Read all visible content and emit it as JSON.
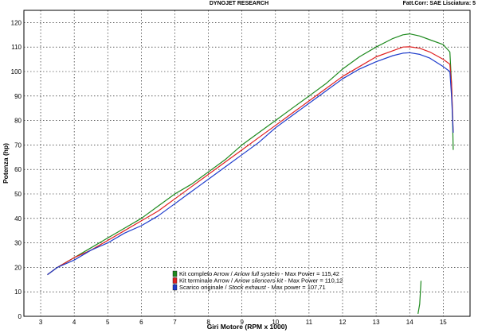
{
  "header": {
    "title": "DYNOJET RESEARCH",
    "correction": "Fatt.Corr: SAE  Lisciatura: 5"
  },
  "chart_data": {
    "type": "line",
    "xlabel": "Giri Motore (RPM x 1000)",
    "ylabel": "Potenza (hp)",
    "xlim": [
      2.5,
      15.8
    ],
    "ylim": [
      0,
      125
    ],
    "xticks": [
      3,
      4,
      5,
      6,
      7,
      8,
      9,
      10,
      11,
      12,
      13,
      14,
      15
    ],
    "yticks": [
      0,
      10,
      20,
      30,
      40,
      50,
      60,
      70,
      80,
      90,
      100,
      110,
      120
    ],
    "grid": true,
    "legend_position": "bottom-center",
    "series": [
      {
        "name": "Kit completo Arrow / Arrow full system - Max Power = 115,42",
        "legend_plain": "Kit completo Arrow / ",
        "legend_italic": "Arrow full system",
        "legend_tail": " - Max Power = 115,42",
        "color": "#1e8a1e",
        "x": [
          3.2,
          3.5,
          4.0,
          4.5,
          5.0,
          5.5,
          6.0,
          6.5,
          7.0,
          7.5,
          8.0,
          8.5,
          9.0,
          9.5,
          10.0,
          10.5,
          11.0,
          11.5,
          12.0,
          12.5,
          13.0,
          13.5,
          13.8,
          14.0,
          14.3,
          14.6,
          15.0,
          15.2,
          15.25,
          15.28,
          15.3
        ],
        "y": [
          17,
          20,
          24,
          28,
          32,
          36,
          40,
          45,
          50,
          54,
          59,
          64,
          70,
          75,
          80,
          85,
          90,
          95,
          101,
          106,
          110,
          113.5,
          115,
          115.4,
          114.5,
          113,
          111,
          108,
          95,
          80,
          68
        ]
      },
      {
        "name": "Kit terminale Arrow / Arrow silencers kit - Max Power = 110,12",
        "legend_plain": "Kit terminale Arrow / ",
        "legend_italic": "Arrow silencers kit",
        "legend_tail": " - Max Power = 110,12",
        "color": "#e02020",
        "x": [
          3.2,
          3.5,
          4.0,
          4.5,
          5.0,
          5.5,
          6.0,
          6.5,
          7.0,
          7.5,
          8.0,
          8.5,
          9.0,
          9.5,
          10.0,
          10.5,
          11.0,
          11.5,
          12.0,
          12.5,
          13.0,
          13.5,
          13.8,
          14.0,
          14.3,
          14.6,
          15.0,
          15.2,
          15.25,
          15.3
        ],
        "y": [
          17,
          20,
          24,
          27,
          31,
          35,
          39,
          43,
          48,
          53,
          58,
          63,
          68,
          73,
          78,
          83,
          88,
          93,
          98,
          102,
          106,
          108.5,
          110,
          110.1,
          109.5,
          108,
          105,
          103,
          95,
          75
        ]
      },
      {
        "name": "Scarico originale / Stock exhaust - Max power = 107,71",
        "legend_plain": "Scarico originale / ",
        "legend_italic": "Stock exhaust",
        "legend_tail": " - Max power = 107,71",
        "color": "#1e3ccc",
        "x": [
          3.2,
          3.5,
          4.0,
          4.5,
          5.0,
          5.5,
          6.0,
          6.5,
          7.0,
          7.5,
          8.0,
          8.5,
          9.0,
          9.5,
          10.0,
          10.5,
          11.0,
          11.5,
          12.0,
          12.5,
          13.0,
          13.5,
          13.8,
          14.0,
          14.3,
          14.6,
          15.0,
          15.2,
          15.25,
          15.3
        ],
        "y": [
          17,
          20,
          23,
          27,
          30,
          34,
          37,
          41,
          46,
          51,
          56,
          61,
          66,
          71,
          77,
          82,
          87,
          92,
          97,
          101,
          104,
          106.5,
          107.5,
          107.7,
          107,
          105.5,
          102,
          100,
          90,
          75
        ]
      },
      {
        "name": "",
        "color": "#1e8a1e",
        "x": [
          14.25,
          14.3,
          14.32,
          14.34
        ],
        "y": [
          1,
          5,
          10,
          14.5
        ]
      }
    ]
  }
}
